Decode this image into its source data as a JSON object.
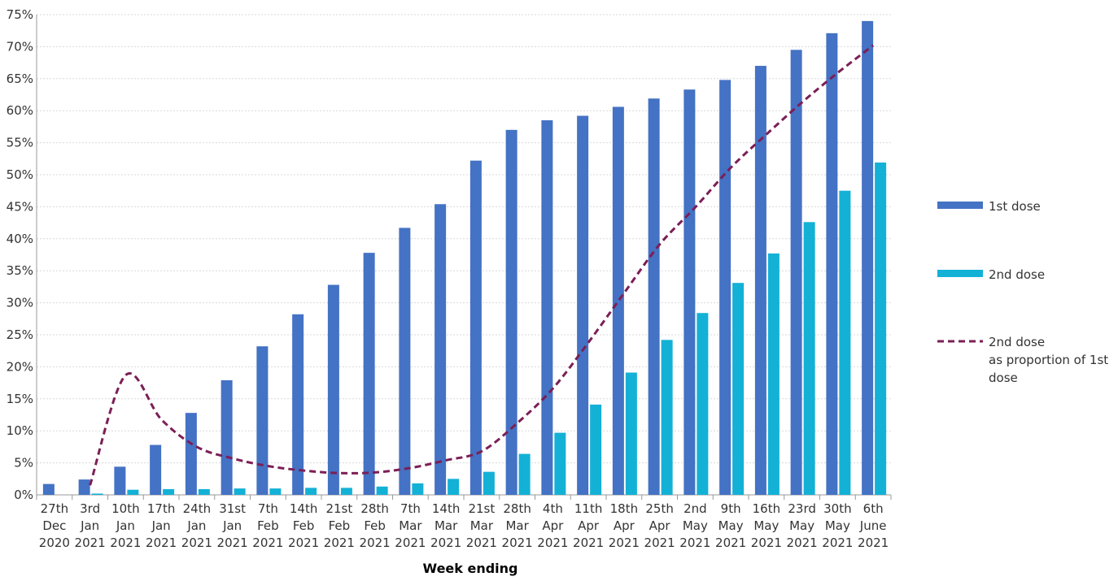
{
  "chart_data": {
    "type": "bar",
    "x_label": "Week ending",
    "categories": [
      "27th Dec 2020",
      "3rd Jan 2021",
      "10th Jan 2021",
      "17th Jan 2021",
      "24th Jan 2021",
      "31st Jan 2021",
      "7th Feb 2021",
      "14th Feb 2021",
      "21st Feb 2021",
      "28th Feb 2021",
      "7th Mar 2021",
      "14th Mar 2021",
      "21st Mar 2021",
      "28th Mar 2021",
      "4th Apr 2021",
      "11th Apr 2021",
      "18th Apr 2021",
      "25th Apr 2021",
      "2nd May 2021",
      "9th May 2021",
      "16th May 2021",
      "23rd May 2021",
      "30th May 2021",
      "6th June 2021"
    ],
    "series": [
      {
        "name": "1st dose",
        "type": "bar",
        "color": "#4472c4",
        "values": [
          1.7,
          2.4,
          4.4,
          7.8,
          12.8,
          17.9,
          23.2,
          28.2,
          32.8,
          37.8,
          41.7,
          45.4,
          52.2,
          57.0,
          58.5,
          59.2,
          60.6,
          61.9,
          63.3,
          64.8,
          67.0,
          69.5,
          72.1,
          74.0
        ]
      },
      {
        "name": "2nd dose",
        "type": "bar",
        "color": "#14b1d6",
        "values": [
          0,
          0.2,
          0.8,
          0.9,
          0.9,
          1.0,
          1.0,
          1.1,
          1.1,
          1.3,
          1.8,
          2.5,
          3.6,
          6.4,
          9.7,
          14.1,
          19.1,
          24.2,
          28.4,
          33.1,
          37.7,
          42.6,
          47.5,
          51.9
        ]
      },
      {
        "name": "2nd dose as proportion of 1st dose",
        "type": "line",
        "color": "#7b1f55",
        "values": [
          null,
          1.5,
          18.7,
          11.8,
          7.5,
          5.7,
          4.5,
          3.8,
          3.4,
          3.5,
          4.2,
          5.4,
          6.8,
          11.2,
          16.6,
          23.8,
          31.5,
          39.1,
          44.9,
          51.1,
          56.3,
          61.3,
          65.9,
          70.2
        ]
      }
    ],
    "ylim": [
      0,
      75
    ],
    "yticks": [
      {
        "value": 0,
        "label": "0%"
      },
      {
        "value": 5,
        "label": "5%"
      },
      {
        "value": 10,
        "label": "10%"
      },
      {
        "value": 15,
        "label": "15%"
      },
      {
        "value": 20,
        "label": "20%"
      },
      {
        "value": 25,
        "label": "25%"
      },
      {
        "value": 30,
        "label": "30%"
      },
      {
        "value": 35,
        "label": "35%"
      },
      {
        "value": 40,
        "label": "40%"
      },
      {
        "value": 45,
        "label": "45%"
      },
      {
        "value": 50,
        "label": "50%"
      },
      {
        "value": 55,
        "label": "55%"
      },
      {
        "value": 60,
        "label": "60%"
      },
      {
        "value": 65,
        "label": "65%"
      },
      {
        "value": 70,
        "label": "70%"
      },
      {
        "value": 75,
        "label": "75%"
      }
    ],
    "grid": true,
    "legend": "right"
  }
}
